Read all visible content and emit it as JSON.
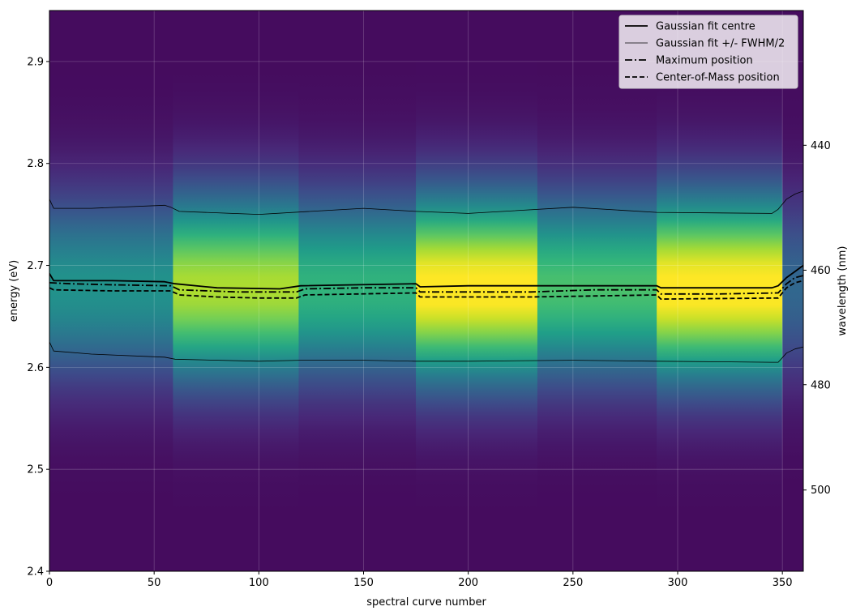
{
  "chart_data": {
    "type": "heatmap",
    "title": "",
    "xlabel": "spectral curve number",
    "ylabel": "energy (eV)",
    "y2label": "wavelength (nm)",
    "xlim": [
      0,
      360
    ],
    "ylim": [
      2.4,
      2.95
    ],
    "xticks": [
      0,
      50,
      100,
      150,
      200,
      250,
      300,
      350
    ],
    "xtick_labels": [
      "0",
      "50",
      "100",
      "150",
      "200",
      "250",
      "300",
      "350"
    ],
    "yticks": [
      2.4,
      2.5,
      2.6,
      2.7,
      2.8,
      2.9
    ],
    "ytick_labels": [
      "2.4",
      "2.5",
      "2.6",
      "2.7",
      "2.8",
      "2.9"
    ],
    "y2ticks_nm": [
      440,
      460,
      480,
      500
    ],
    "y2tick_labels": [
      "440",
      "460",
      "480",
      "500"
    ],
    "grid": true,
    "colormap": "viridis",
    "heatmap": {
      "peak_energy": 2.678,
      "fwhm_ev": 0.148,
      "segments": [
        {
          "x_start": 0,
          "x_end": 59,
          "intensity": 0.48
        },
        {
          "x_start": 59,
          "x_end": 119,
          "intensity": 0.85
        },
        {
          "x_start": 119,
          "x_end": 175,
          "intensity": 0.62
        },
        {
          "x_start": 175,
          "x_end": 233,
          "intensity": 1.0
        },
        {
          "x_start": 233,
          "x_end": 290,
          "intensity": 0.68
        },
        {
          "x_start": 290,
          "x_end": 350,
          "intensity": 1.0
        },
        {
          "x_start": 350,
          "x_end": 360,
          "intensity": 0.3
        }
      ]
    },
    "legend": {
      "position": "top-right",
      "entries": [
        {
          "label": "Gaussian fit centre",
          "style": "solid-thick"
        },
        {
          "label": "Gaussian fit +/- FWHM/2",
          "style": "solid-thin"
        },
        {
          "label": "Maximum position",
          "style": "dashdot"
        },
        {
          "label": "Center-of-Mass position",
          "style": "dashed"
        }
      ]
    },
    "series": [
      {
        "name": "Gaussian fit centre",
        "x": [
          0,
          2,
          10,
          30,
          55,
          60,
          80,
          110,
          120,
          175,
          177,
          200,
          260,
          290,
          292,
          345,
          348,
          352,
          356,
          360
        ],
        "y": [
          2.692,
          2.685,
          2.685,
          2.685,
          2.684,
          2.682,
          2.678,
          2.677,
          2.68,
          2.682,
          2.679,
          2.68,
          2.68,
          2.68,
          2.678,
          2.678,
          2.68,
          2.688,
          2.694,
          2.7
        ]
      },
      {
        "name": "Gaussian fit +/- FWHM/2",
        "x": [
          0,
          2,
          20,
          55,
          58,
          62,
          100,
          150,
          175,
          200,
          250,
          290,
          345,
          348,
          352,
          356,
          360
        ],
        "y": [
          2.765,
          2.756,
          2.756,
          2.759,
          2.757,
          2.753,
          2.75,
          2.756,
          2.753,
          2.751,
          2.757,
          2.752,
          2.751,
          2.755,
          2.765,
          2.77,
          2.773
        ]
      },
      {
        "name": "Gaussian fit +/- FWHM/2",
        "x": [
          0,
          2,
          20,
          55,
          60,
          100,
          120,
          150,
          175,
          200,
          250,
          290,
          345,
          348,
          352,
          356,
          360
        ],
        "y": [
          2.625,
          2.616,
          2.613,
          2.61,
          2.608,
          2.606,
          2.607,
          2.607,
          2.606,
          2.606,
          2.607,
          2.606,
          2.605,
          2.605,
          2.614,
          2.618,
          2.62
        ]
      },
      {
        "name": "Maximum position",
        "x": [
          0,
          10,
          30,
          58,
          62,
          90,
          118,
          122,
          150,
          175,
          177,
          200,
          230,
          260,
          290,
          292,
          320,
          348,
          352,
          356,
          360
        ],
        "y": [
          2.683,
          2.682,
          2.681,
          2.68,
          2.676,
          2.674,
          2.674,
          2.677,
          2.678,
          2.678,
          2.674,
          2.674,
          2.674,
          2.676,
          2.676,
          2.672,
          2.672,
          2.673,
          2.682,
          2.688,
          2.69
        ]
      },
      {
        "name": "Center-of-Mass position",
        "x": [
          0,
          2,
          30,
          58,
          62,
          80,
          100,
          118,
          122,
          175,
          177,
          230,
          290,
          292,
          348,
          352,
          356,
          360
        ],
        "y": [
          2.678,
          2.676,
          2.675,
          2.675,
          2.671,
          2.669,
          2.668,
          2.668,
          2.671,
          2.673,
          2.669,
          2.669,
          2.671,
          2.667,
          2.668,
          2.678,
          2.683,
          2.685
        ]
      }
    ]
  }
}
